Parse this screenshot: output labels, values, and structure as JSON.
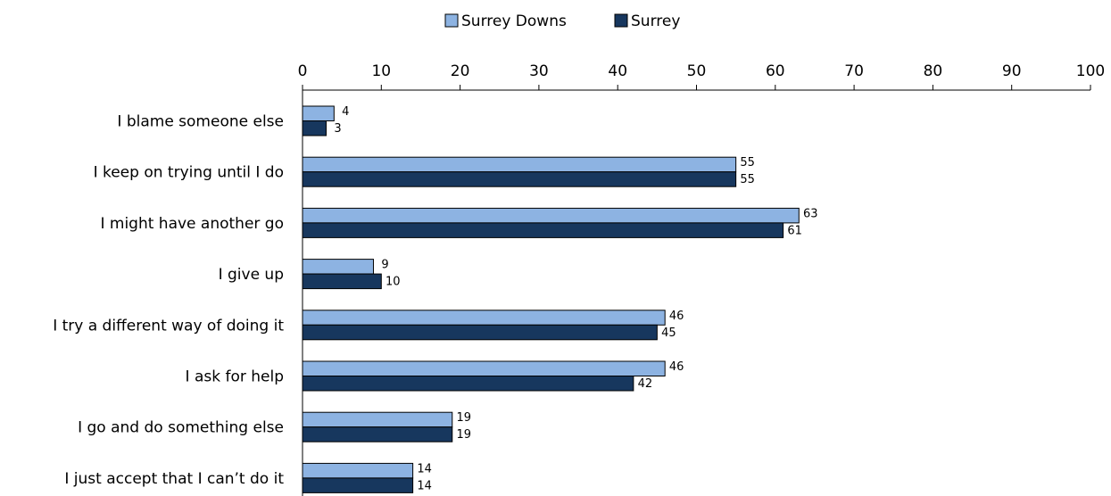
{
  "chart_data": {
    "type": "bar",
    "orientation": "horizontal",
    "categories": [
      "I blame someone else",
      "I keep on trying until I do",
      "I might have another go",
      "I give up",
      "I try a different way of doing it",
      "I ask for help",
      "I go and do something else",
      "I just accept that I can’t do it"
    ],
    "series": [
      {
        "name": "Surrey Downs",
        "values": [
          4,
          55,
          63,
          9,
          46,
          46,
          19,
          14
        ],
        "color": "#8DB3E2"
      },
      {
        "name": "Surrey",
        "values": [
          3,
          55,
          61,
          10,
          45,
          42,
          19,
          14
        ],
        "color": "#17375E"
      }
    ],
    "xlim": [
      0,
      100
    ],
    "xticks": [
      0,
      10,
      20,
      30,
      40,
      50,
      60,
      70,
      80,
      90,
      100
    ],
    "axis_position": "top",
    "legend_position": "top",
    "grid": false,
    "bar_outline_color": "#000000"
  }
}
